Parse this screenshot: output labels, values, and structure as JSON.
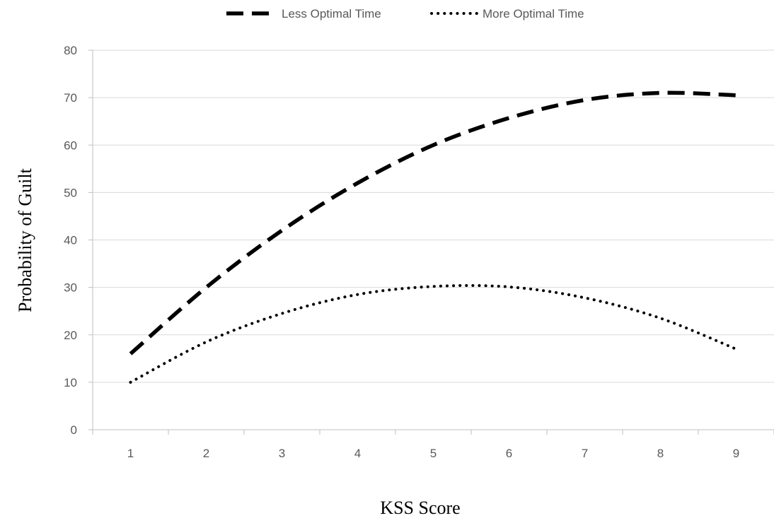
{
  "chart_data": {
    "type": "line",
    "title": "",
    "xlabel": "KSS Score",
    "ylabel": "Probability of Guilt",
    "categories": [
      "1",
      "2",
      "3",
      "4",
      "5",
      "6",
      "7",
      "8",
      "9"
    ],
    "x": [
      1,
      2,
      3,
      4,
      5,
      6,
      7,
      8,
      9
    ],
    "ylim": [
      0,
      80
    ],
    "yticks": [
      0,
      10,
      20,
      30,
      40,
      50,
      60,
      70,
      80
    ],
    "grid": "horizontal",
    "legend_position": "top",
    "series": [
      {
        "name": "Less Optimal Time",
        "style": "dashed",
        "color": "#000000",
        "values": [
          16,
          30,
          42,
          52,
          60,
          65.7,
          69.5,
          71,
          70.5
        ]
      },
      {
        "name": "More Optimal Time",
        "style": "dotted",
        "color": "#000000",
        "values": [
          10,
          18.5,
          24.5,
          28.5,
          30.2,
          30.1,
          27.8,
          23.5,
          17
        ]
      }
    ]
  }
}
